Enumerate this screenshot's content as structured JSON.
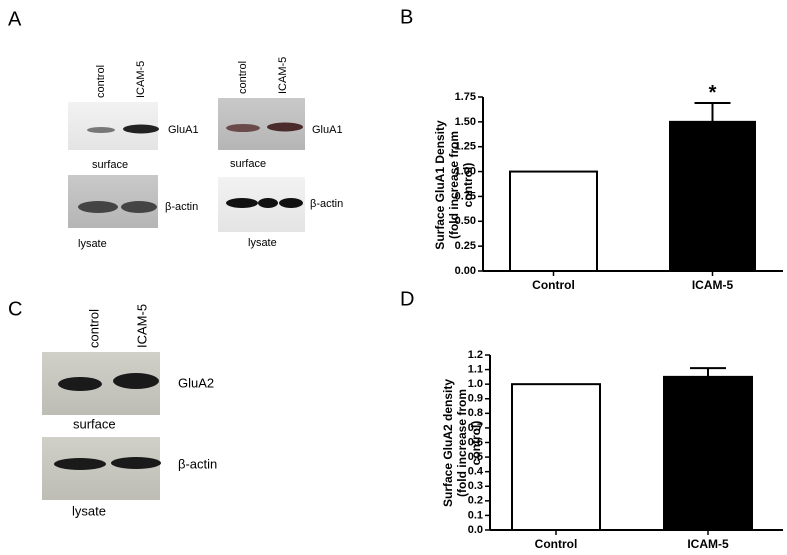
{
  "panel_labels": [
    "A",
    "B",
    "C",
    "D"
  ],
  "blots": [
    {
      "lanes": [
        "control",
        "ICAM-5"
      ],
      "bands": [
        {
          "label": "GluA1",
          "caption": "surface"
        },
        {
          "label": "β-actin",
          "caption": "lysate"
        }
      ]
    },
    {
      "lanes": [
        "control",
        "ICAM-5"
      ],
      "bands": [
        {
          "label": "GluA1",
          "caption": "surface"
        },
        {
          "label": "β-actin",
          "caption": "lysate"
        }
      ]
    },
    {
      "lanes": [
        "control",
        "ICAM-5"
      ],
      "bands": [
        {
          "label": "GluA2",
          "caption": "surface"
        },
        {
          "label": "β-actin",
          "caption": "lysate"
        }
      ]
    }
  ],
  "chart_data": [
    {
      "type": "bar",
      "ylabel": [
        "Surface GluA1 Density",
        "(fold increase from",
        "control)"
      ],
      "categories": [
        "Control",
        "ICAM-5"
      ],
      "values": [
        1.0,
        1.5
      ],
      "errors": [
        null,
        0.19
      ],
      "colors": [
        "#ffffff",
        "#000000"
      ],
      "annotations": [
        null,
        "*"
      ],
      "ylim": [
        0,
        1.75
      ],
      "yticks": [
        {
          "value": 0,
          "label": "0.00"
        },
        0.25,
        {
          "value": 0.5,
          "label": "0.50"
        },
        0.75,
        {
          "value": 1,
          "label": "1.00"
        },
        1.25,
        {
          "value": 1.5,
          "label": "1.50"
        },
        1.75
      ]
    },
    {
      "type": "bar",
      "ylabel": [
        "Surface GluA2 density",
        "(fold increase from",
        "control)"
      ],
      "categories": [
        "Control",
        "ICAM-5"
      ],
      "values": [
        1.0,
        1.05
      ],
      "errors": [
        null,
        0.06
      ],
      "colors": [
        "#ffffff",
        "#000000"
      ],
      "annotations": [
        null,
        null
      ],
      "ylim": [
        0,
        1.2
      ],
      "yticks": [
        {
          "value": 0,
          "label": "0.0"
        },
        0.1,
        0.2,
        0.3,
        0.4,
        0.5,
        0.6,
        0.7,
        0.8,
        0.9,
        {
          "value": 1,
          "label": "1.0"
        },
        1.1,
        1.2
      ]
    }
  ]
}
